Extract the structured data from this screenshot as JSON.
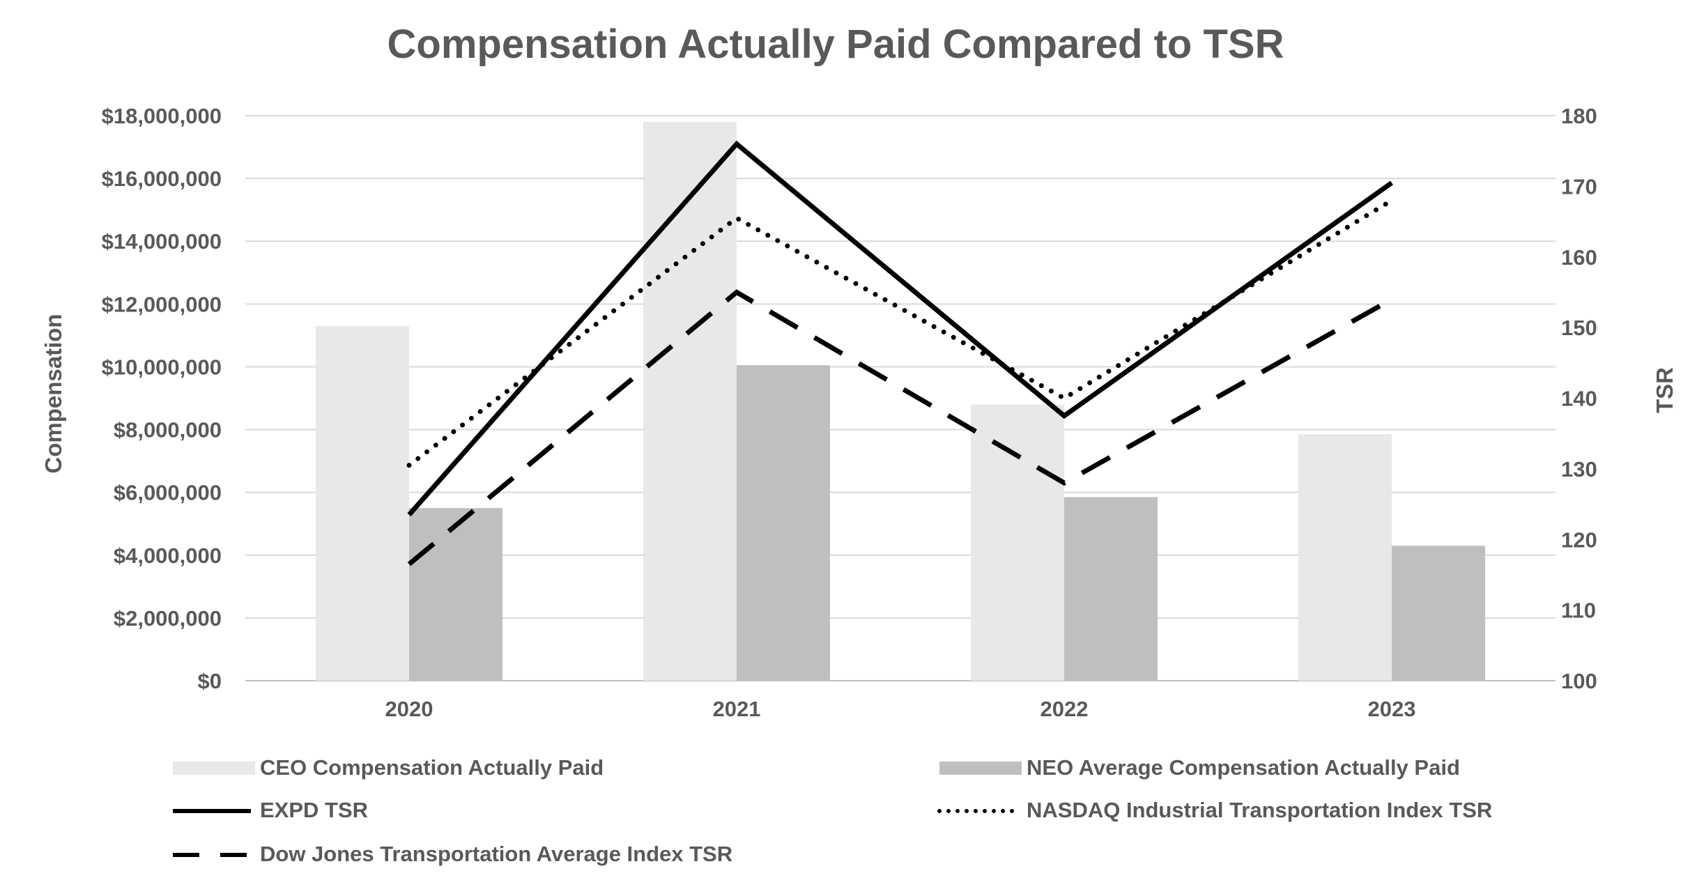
{
  "chart_data": {
    "type": "bar",
    "title": "Compensation Actually Paid Compared to TSR",
    "categories": [
      "2020",
      "2021",
      "2022",
      "2023"
    ],
    "ylabel": "Compensation",
    "y2label": "TSR",
    "ylim": [
      0,
      18000000
    ],
    "y2lim": [
      100,
      180
    ],
    "y_ticks": [
      "$0",
      "$2,000,000",
      "$4,000,000",
      "$6,000,000",
      "$8,000,000",
      "$10,000,000",
      "$12,000,000",
      "$14,000,000",
      "$16,000,000",
      "$18,000,000"
    ],
    "y2_ticks": [
      "100",
      "110",
      "120",
      "130",
      "140",
      "150",
      "160",
      "170",
      "180"
    ],
    "grid": true,
    "legend_position": "bottom",
    "bar_series": [
      {
        "name": "CEO Compensation Actually Paid",
        "color": "#e8e8e8",
        "values": [
          11300000,
          17800000,
          8800000,
          7850000
        ]
      },
      {
        "name": "NEO Average Compensation Actually Paid",
        "color": "#bfbfbf",
        "values": [
          5500000,
          10050000,
          5850000,
          4300000
        ]
      }
    ],
    "line_series": [
      {
        "name": "EXPD TSR",
        "color": "#000000",
        "style": "solid",
        "values": [
          123.5,
          176,
          137.5,
          170.5
        ]
      },
      {
        "name": "NASDAQ Industrial Transportation Index TSR",
        "color": "#000000",
        "style": "dotted",
        "values": [
          130.5,
          165.5,
          140,
          168
        ]
      },
      {
        "name": "Dow Jones Transportation Average Index TSR",
        "color": "#000000",
        "style": "dashed",
        "values": [
          116.5,
          155,
          128,
          154
        ]
      }
    ]
  }
}
